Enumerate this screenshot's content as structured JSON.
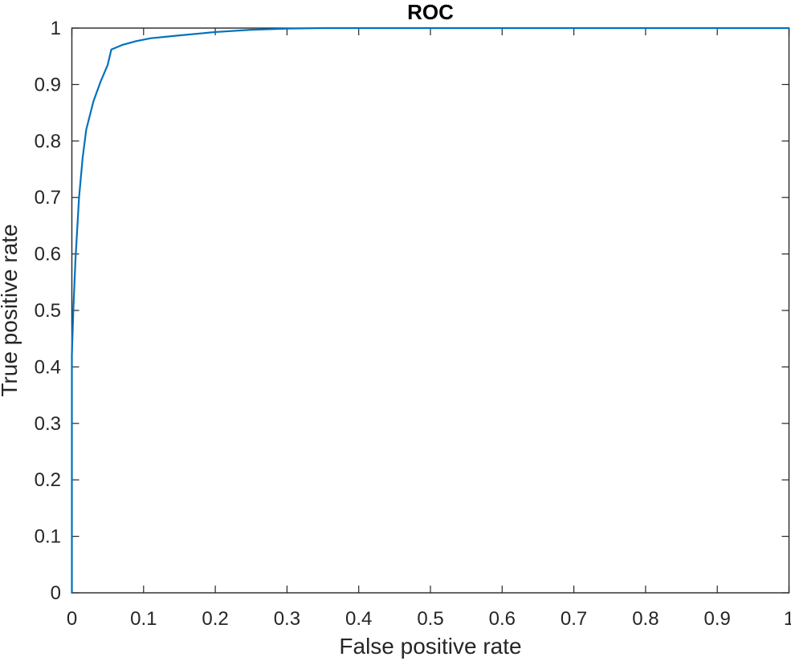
{
  "chart_data": {
    "type": "line",
    "title": "ROC",
    "xlabel": "False positive rate",
    "ylabel": "True positive rate",
    "xlim": [
      0,
      1
    ],
    "ylim": [
      0,
      1
    ],
    "grid": false,
    "xticks": [
      "0",
      "0.1",
      "0.2",
      "0.3",
      "0.4",
      "0.5",
      "0.6",
      "0.7",
      "0.8",
      "0.9",
      "1"
    ],
    "yticks": [
      "0",
      "0.1",
      "0.2",
      "0.3",
      "0.4",
      "0.5",
      "0.6",
      "0.7",
      "0.8",
      "0.9",
      "1"
    ],
    "colors": {
      "line": "#0072BD",
      "axes": "#262626"
    },
    "series": [
      {
        "x": [
          0,
          0,
          0.002,
          0.005,
          0.01,
          0.015,
          0.02,
          0.03,
          0.04,
          0.05,
          0.055,
          0.07,
          0.09,
          0.11,
          0.15,
          0.2,
          0.25,
          0.3,
          0.35,
          0.5,
          0.7,
          1.0
        ],
        "y": [
          0,
          0.42,
          0.5,
          0.59,
          0.7,
          0.77,
          0.82,
          0.87,
          0.905,
          0.935,
          0.962,
          0.97,
          0.977,
          0.982,
          0.987,
          0.993,
          0.997,
          0.999,
          1.0,
          1.0,
          1.0,
          1.0
        ]
      }
    ]
  }
}
